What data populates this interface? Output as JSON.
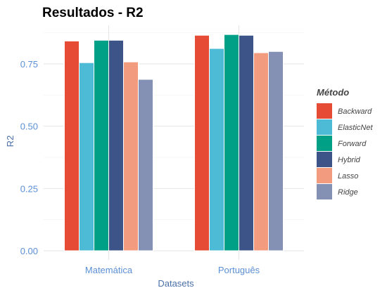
{
  "chart_data": {
    "type": "bar",
    "title": "Resultados - R2",
    "xlabel": "Datasets",
    "ylabel": "R2",
    "categories": [
      "Matemática",
      "Português"
    ],
    "ylim": [
      0,
      0.92
    ],
    "yticks": [
      0.0,
      0.25,
      0.5,
      0.75
    ],
    "ytick_labels": [
      "0.00",
      "0.25",
      "0.50",
      "0.75"
    ],
    "grid": true,
    "legend": {
      "title": "Método",
      "placement": "right"
    },
    "series": [
      {
        "name": "Backward",
        "color": "#e64b35",
        "values": [
          0.842,
          0.865
        ]
      },
      {
        "name": "ElasticNet",
        "color": "#4dbbd5",
        "values": [
          0.755,
          0.812
        ]
      },
      {
        "name": "Forward",
        "color": "#00a087",
        "values": [
          0.845,
          0.868
        ]
      },
      {
        "name": "Hybrid",
        "color": "#3c5488",
        "values": [
          0.845,
          0.865
        ]
      },
      {
        "name": "Lasso",
        "color": "#f39b7f",
        "values": [
          0.758,
          0.795
        ]
      },
      {
        "name": "Ridge",
        "color": "#8491b4",
        "values": [
          0.688,
          0.8
        ]
      }
    ]
  }
}
